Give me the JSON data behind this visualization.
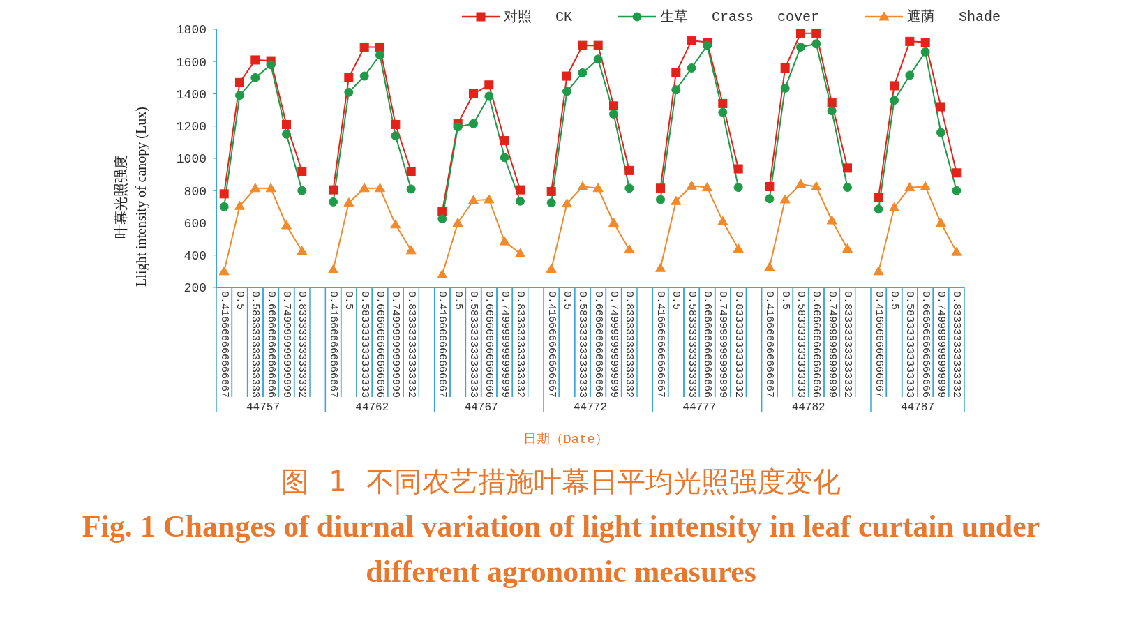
{
  "chart_data": {
    "type": "line",
    "title": "图 1 不同农艺措施叶幕日平均光照强度变化",
    "subtitle": "Fig. 1 Changes of diurnal variation of light intensity in leaf curtain under different agronomic measures",
    "xlabel": "日期（Date）",
    "ylabel": "叶幕光照强度\nLlight intensity of canopy (Lux)",
    "categories": [
      "0.416666666666667",
      "0.5",
      "0.583333333333333",
      "0.666666666666666",
      "0.749999999999999",
      "0.833333333333332",
      null,
      "0.416666666666667",
      "0.5",
      "0.583333333333333",
      "0.666666666666666",
      "0.749999999999999",
      "0.833333333333332",
      null,
      "0.416666666666667",
      "0.5",
      "0.583333333333333",
      "0.666666666666666",
      "0.749999999999999",
      "0.833333333333332",
      null,
      "0.416666666666667",
      "0.5",
      "0.583333333333333",
      "0.666666666666666",
      "0.749999999999999",
      "0.833333333333332",
      null,
      "0.416666666666667",
      "0.5",
      "0.583333333333333",
      "0.666666666666666",
      "0.749999999999999",
      "0.833333333333332",
      null,
      "0.416666666666667",
      "0.5",
      "0.583333333333333",
      "0.666666666666666",
      "0.749999999999999",
      "0.833333333333332",
      null,
      "0.416666666666667",
      "0.5",
      "0.583333333333333",
      "0.666666666666666",
      "0.749999999999999",
      "0.833333333333332"
    ],
    "series": [
      {
        "name": "对照 CK",
        "color": "#e2231a",
        "marker": "square",
        "values": [
          780,
          1470,
          1610,
          1605,
          1210,
          920,
          null,
          805,
          1500,
          1690,
          1690,
          1210,
          920,
          null,
          670,
          1215,
          1400,
          1455,
          1110,
          805,
          null,
          795,
          1510,
          1700,
          1700,
          1325,
          925,
          null,
          815,
          1530,
          1730,
          1720,
          1340,
          935,
          null,
          825,
          1560,
          1775,
          1775,
          1345,
          940,
          null,
          760,
          1450,
          1725,
          1720,
          1320,
          910
        ]
      },
      {
        "name": "生草 Crass cover",
        "color": "#1f9a48",
        "marker": "circle",
        "values": [
          700,
          1390,
          1500,
          1580,
          1150,
          800,
          null,
          730,
          1410,
          1510,
          1640,
          1140,
          810,
          null,
          625,
          1195,
          1215,
          1385,
          1005,
          735,
          null,
          725,
          1415,
          1530,
          1615,
          1275,
          815,
          null,
          745,
          1425,
          1560,
          1700,
          1285,
          820,
          null,
          750,
          1435,
          1690,
          1710,
          1295,
          820,
          null,
          685,
          1360,
          1515,
          1660,
          1160,
          800
        ]
      },
      {
        "name": "遮荫 Shade",
        "color": "#f08a2c",
        "marker": "triangle",
        "values": [
          300,
          705,
          815,
          815,
          585,
          425,
          null,
          310,
          725,
          815,
          815,
          590,
          430,
          null,
          280,
          600,
          740,
          745,
          485,
          410,
          null,
          315,
          720,
          825,
          815,
          600,
          435,
          null,
          320,
          735,
          830,
          820,
          610,
          440,
          null,
          325,
          745,
          840,
          825,
          615,
          440,
          null,
          300,
          695,
          820,
          825,
          600,
          420
        ]
      }
    ],
    "ylim": [
      200,
      1800
    ],
    "yticks": [
      200,
      400,
      600,
      800,
      1000,
      1200,
      1400,
      1600,
      1800
    ],
    "legend": "top right",
    "annotations": [
      "44757",
      "44762",
      "44767",
      "44772",
      "44777",
      "44782",
      "44787"
    ]
  }
}
